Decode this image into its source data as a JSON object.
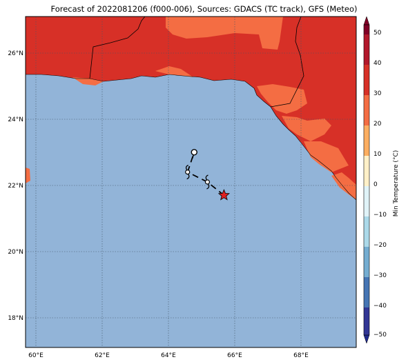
{
  "title": "Forecast of 2022081206 (f000-006), Sources: GDACS (TC track), GFS (Meteo)",
  "map": {
    "lon_range": [
      59.7,
      69.7
    ],
    "lat_range": [
      17.1,
      27.1
    ],
    "lon_ticks": [
      "60°E",
      "62°E",
      "64°E",
      "66°E",
      "68°E"
    ],
    "lat_ticks": [
      "18°N",
      "20°N",
      "22°N",
      "24°N",
      "26°N"
    ],
    "gridlines": "dotted"
  },
  "colorbar": {
    "label": "Min Temperature (°C)",
    "ticks": [
      "50",
      "40",
      "30",
      "20",
      "10",
      "0",
      "−10",
      "−20",
      "−30",
      "−40",
      "−50"
    ],
    "colors_top_to_bottom": [
      "#800026",
      "#b2182b",
      "#d6604d",
      "#f4a582",
      "#fddbc7",
      "#ffffff",
      "#d1e5f0",
      "#92c5de",
      "#4393c3",
      "#2166ac",
      "#053061"
    ]
  },
  "colors": {
    "sea": "#92b4d8",
    "land_hot": "#d73027",
    "land_warm": "#f46d43",
    "storm_marker": "#e02020"
  },
  "tc_track": {
    "points": [
      {
        "lon": 65.7,
        "lat": 21.7,
        "marker": "star"
      },
      {
        "lon": 65.2,
        "lat": 22.1,
        "marker": "cyclone"
      },
      {
        "lon": 64.6,
        "lat": 22.4,
        "marker": "cyclone"
      },
      {
        "lon": 64.8,
        "lat": 23.0,
        "marker": "low"
      }
    ]
  }
}
